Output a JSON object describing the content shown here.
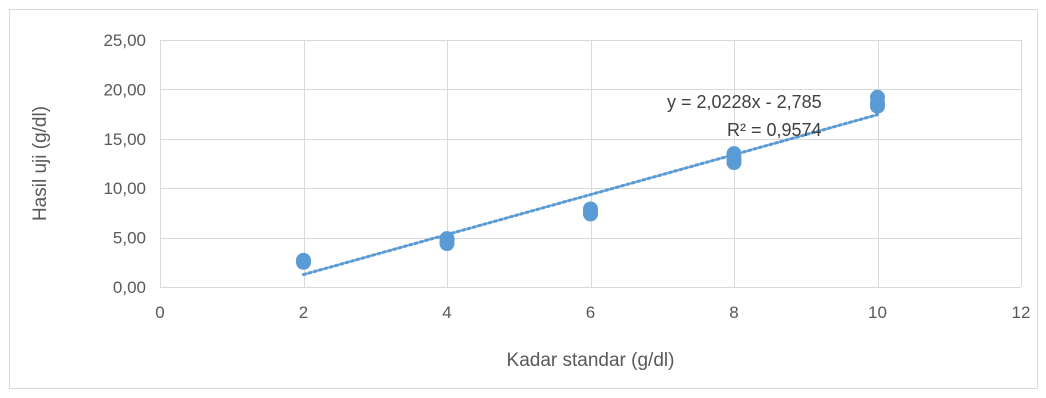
{
  "chart_data": {
    "type": "scatter",
    "title": "",
    "xlabel": "Kadar standar (g/dl)",
    "ylabel": "Hasil uji (g/dl)",
    "xlim": [
      0,
      12
    ],
    "ylim": [
      0,
      25
    ],
    "x_ticks": [
      0,
      2,
      4,
      6,
      8,
      10,
      12
    ],
    "x_tick_labels": [
      "0",
      "2",
      "4",
      "6",
      "8",
      "10",
      "12"
    ],
    "y_ticks": [
      0,
      5,
      10,
      15,
      20,
      25
    ],
    "y_tick_labels": [
      "0,00",
      "5,00",
      "10,00",
      "15,00",
      "20,00",
      "25,00"
    ],
    "grid": {
      "vertical": true,
      "horizontal": true
    },
    "marker_color": "#5b9bd5",
    "trendline_color": "#5b9bd5",
    "series": [
      {
        "points": [
          {
            "x": 2,
            "y": 2.5
          },
          {
            "x": 2,
            "y": 2.7
          },
          {
            "x": 4,
            "y": 4.4
          },
          {
            "x": 4,
            "y": 4.7
          },
          {
            "x": 4,
            "y": 4.9
          },
          {
            "x": 6,
            "y": 7.4
          },
          {
            "x": 6,
            "y": 7.6
          },
          {
            "x": 6,
            "y": 7.9
          },
          {
            "x": 8,
            "y": 12.6
          },
          {
            "x": 8,
            "y": 13.0
          },
          {
            "x": 8,
            "y": 13.5
          },
          {
            "x": 10,
            "y": 18.3
          },
          {
            "x": 10,
            "y": 18.6
          },
          {
            "x": 10,
            "y": 19.2
          }
        ]
      }
    ],
    "trendline": {
      "type": "linear",
      "slope": 2.0228,
      "intercept": -2.785,
      "x_range": [
        2,
        10
      ],
      "equation_label": "y = 2,0228x - 2,785",
      "r2_label": "R² = 0,9574"
    }
  }
}
